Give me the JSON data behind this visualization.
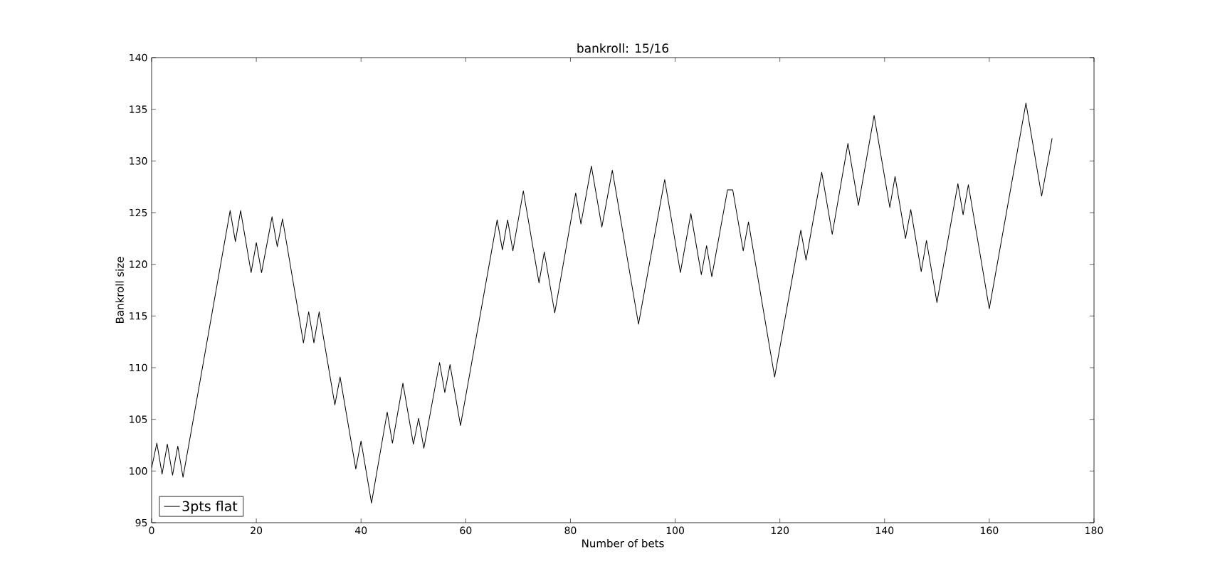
{
  "chart_data": {
    "type": "line",
    "title": "bankroll: 15/16",
    "xlabel": "Number of bets",
    "ylabel": "Bankroll size",
    "xlim": [
      0,
      180
    ],
    "xticks": [
      0,
      20,
      40,
      60,
      80,
      100,
      120,
      140,
      160,
      180
    ],
    "ylim": [
      95,
      140
    ],
    "yticks": [
      95,
      100,
      105,
      110,
      115,
      120,
      125,
      130,
      135,
      140
    ],
    "grid": false,
    "legend": "bottom left",
    "marker": "none",
    "line_style": "solid",
    "series": [
      {
        "name": "3pts flat",
        "color": "#000000",
        "x": [
          0,
          1,
          2,
          3,
          4,
          5,
          6,
          8,
          15,
          16,
          17,
          19,
          20,
          21,
          23,
          24,
          25,
          29,
          30,
          31,
          32,
          35,
          36,
          39,
          40,
          42,
          45,
          46,
          48,
          50,
          51,
          52,
          55,
          56,
          57,
          59,
          66,
          67,
          68,
          69,
          71,
          74,
          75,
          77,
          81,
          82,
          84,
          86,
          88,
          93,
          98,
          101,
          103,
          105,
          106,
          107,
          110,
          111,
          113,
          114,
          119,
          124,
          125,
          128,
          130,
          133,
          135,
          138,
          141,
          142,
          144,
          145,
          147,
          148,
          150,
          154,
          155,
          156,
          160,
          167,
          170,
          172
        ],
        "values": [
          100.3,
          102.7,
          99.7,
          102.6,
          99.6,
          102.4,
          99.4,
          105.1,
          125.2,
          122.2,
          125.2,
          119.2,
          122.1,
          119.2,
          124.6,
          121.7,
          124.4,
          112.4,
          115.4,
          112.4,
          115.4,
          106.4,
          109.1,
          100.2,
          102.9,
          96.9,
          105.7,
          102.7,
          108.5,
          102.6,
          105.1,
          102.2,
          110.5,
          107.6,
          110.3,
          104.4,
          124.3,
          121.4,
          124.3,
          121.3,
          127.1,
          118.2,
          121.2,
          115.3,
          126.9,
          123.9,
          129.5,
          123.6,
          129.1,
          114.2,
          128.2,
          119.2,
          124.9,
          119.0,
          121.8,
          118.8,
          127.2,
          127.2,
          121.3,
          124.1,
          109.1,
          123.3,
          120.4,
          128.9,
          122.9,
          131.7,
          125.7,
          134.4,
          125.5,
          128.5,
          122.5,
          125.3,
          119.3,
          122.3,
          116.3,
          127.8,
          124.8,
          127.7,
          115.7,
          135.6,
          126.6,
          132.2
        ]
      }
    ]
  }
}
